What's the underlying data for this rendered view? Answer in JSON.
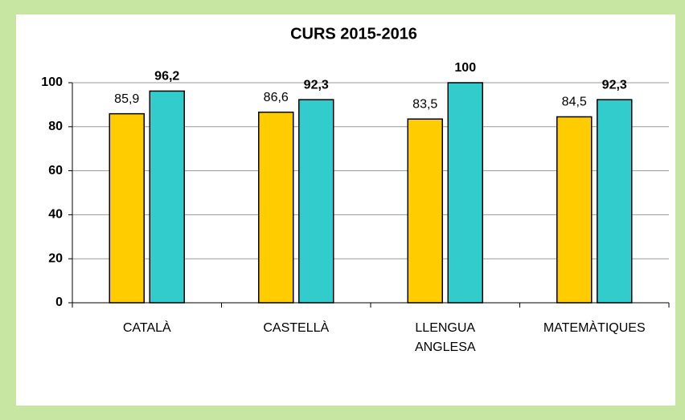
{
  "chart_data": {
    "type": "bar",
    "title": "CURS 2015-2016",
    "categories": [
      "CATALÀ",
      "CASTELLÀ",
      "LLENGUA\nANGLESA",
      "MATEMÀTIQUES"
    ],
    "series": [
      {
        "color": "#ffcc00",
        "values": [
          85.9,
          86.6,
          83.5,
          84.5
        ],
        "value_labels": [
          "85,9",
          "86,6",
          "83,5",
          "84,5"
        ]
      },
      {
        "color": "#33cccc",
        "values": [
          96.2,
          92.3,
          100,
          92.3
        ],
        "value_labels": [
          "96,2",
          "92,3",
          "100",
          "92,3"
        ]
      }
    ],
    "ylim": [
      0,
      100
    ],
    "yticks": [
      0,
      20,
      40,
      60,
      80,
      100
    ],
    "grid": true
  }
}
